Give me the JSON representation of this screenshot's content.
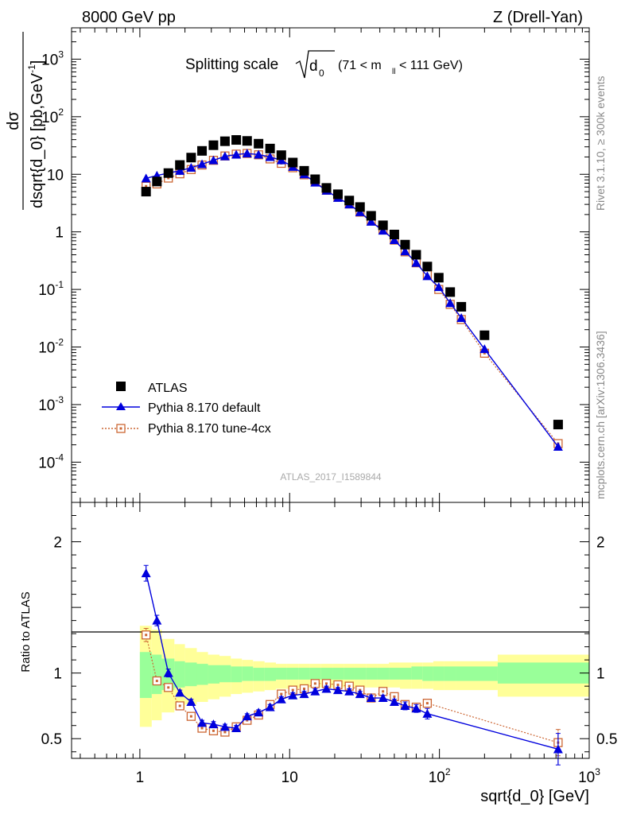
{
  "header": {
    "left": "8000 GeV pp",
    "right": "Z (Drell-Yan)"
  },
  "chart_data": [
    {
      "type": "scatter",
      "title": "Splitting scale",
      "title_sqrt": "d",
      "title_sqrt_sub": "0",
      "title_cut": "(71 < m",
      "title_cut_sub": "ll",
      "title_cut_end": " < 111 GeV)",
      "ylabel_num": "dσ",
      "ylabel_den": "dsqrt{d_0} [pb,GeV",
      "ylabel_den_sup": "-1",
      "ylabel_den_end": "]",
      "yscale": "log",
      "xscale": "log",
      "xlim": [
        0.35,
        1000
      ],
      "ylim": [
        2e-05,
        3500
      ],
      "ytick_labels": [
        {
          "base": "10",
          "exp": "-4"
        },
        {
          "base": "10",
          "exp": "-3"
        },
        {
          "base": "10",
          "exp": "-2"
        },
        {
          "base": "10",
          "exp": "-1"
        },
        {
          "base": "1",
          "exp": ""
        },
        {
          "base": "10",
          "exp": ""
        },
        {
          "base": "10",
          "exp": "2"
        },
        {
          "base": "10",
          "exp": "3"
        }
      ],
      "legend": [
        "ATLAS",
        "Pythia 8.170 default",
        "Pythia 8.170 tune-4cx"
      ],
      "legend_position": "lower-left",
      "watermark": "ATLAS_2017_I1589844",
      "x": [
        1.1,
        1.3,
        1.55,
        1.85,
        2.2,
        2.6,
        3.1,
        3.7,
        4.4,
        5.2,
        6.2,
        7.4,
        8.8,
        10.5,
        12.5,
        14.8,
        17.6,
        21,
        25,
        29.5,
        35,
        42,
        50,
        59,
        70,
        83,
        99,
        118,
        140,
        200,
        620
      ],
      "series": [
        {
          "name": "ATLAS",
          "color": "#000000",
          "values": [
            5.0,
            7.5,
            10.5,
            14.5,
            19.5,
            25.5,
            32,
            37.5,
            39.5,
            38,
            34,
            28,
            21.5,
            16,
            11.5,
            8.2,
            5.8,
            4.5,
            3.5,
            2.7,
            1.9,
            1.3,
            0.9,
            0.6,
            0.4,
            0.25,
            0.16,
            0.09,
            0.05,
            0.016,
            0.00045
          ]
        },
        {
          "name": "Pythia 8.170 default",
          "color": "#0000dd",
          "values": [
            8.5,
            9.5,
            10.5,
            11.5,
            13.0,
            15.0,
            17.5,
            20.5,
            22.0,
            23.0,
            22.0,
            20.0,
            17.5,
            13.5,
            10.0,
            7.2,
            5.2,
            3.9,
            3.0,
            2.2,
            1.5,
            1.05,
            0.72,
            0.46,
            0.29,
            0.17,
            0.11,
            0.058,
            0.032,
            0.0092,
            0.000185
          ]
        },
        {
          "name": "Pythia 8.170 tune-4cx",
          "color": "#cc6633",
          "values": [
            6.2,
            6.8,
            8.6,
            10.2,
            12.1,
            14.5,
            17.5,
            20.8,
            22.4,
            23.0,
            21.8,
            18.5,
            15.5,
            13.0,
            9.8,
            7.5,
            5.3,
            4.0,
            3.05,
            2.2,
            1.55,
            1.1,
            0.72,
            0.45,
            0.29,
            0.18,
            0.1,
            0.055,
            0.03,
            0.0078,
            0.00021
          ]
        }
      ]
    },
    {
      "type": "scatter",
      "ylabel": "Ratio to ATLAS",
      "xlabel": "sqrt{d_0} [GeV]",
      "yscale": "linear",
      "xscale": "log",
      "xlim": [
        0.35,
        1000
      ],
      "ylim": [
        0.35,
        2.3
      ],
      "ytick_labels": [
        "0.5",
        "1",
        "2"
      ],
      "xtick_labels": [
        {
          "base": "1",
          "exp": ""
        },
        {
          "base": "10",
          "exp": ""
        },
        {
          "base": "10",
          "exp": "2"
        },
        {
          "base": "10",
          "exp": "3"
        }
      ],
      "reference_line": 1,
      "bands": [
        {
          "name": "outer",
          "color": "#ffff99"
        },
        {
          "name": "inner",
          "color": "#99ff99"
        }
      ],
      "band_edges": [
        1.0,
        1.2,
        1.4,
        1.7,
        2.0,
        2.4,
        2.85,
        3.4,
        4.05,
        4.8,
        5.7,
        6.8,
        8.1,
        9.6,
        11.5,
        13.6,
        16.2,
        19.3,
        23,
        27,
        32.3,
        38.5,
        46,
        54.5,
        65,
        77,
        91,
        108,
        129,
        245,
        1000
      ],
      "band_outer": [
        [
          0.59,
          1.36
        ],
        [
          0.64,
          1.33
        ],
        [
          0.7,
          1.26
        ],
        [
          0.73,
          1.22
        ],
        [
          0.76,
          1.19
        ],
        [
          0.78,
          1.16
        ],
        [
          0.8,
          1.14
        ],
        [
          0.82,
          1.13
        ],
        [
          0.84,
          1.11
        ],
        [
          0.85,
          1.1
        ],
        [
          0.86,
          1.09
        ],
        [
          0.87,
          1.08
        ],
        [
          0.88,
          1.07
        ],
        [
          0.88,
          1.07
        ],
        [
          0.89,
          1.07
        ],
        [
          0.89,
          1.07
        ],
        [
          0.89,
          1.07
        ],
        [
          0.89,
          1.07
        ],
        [
          0.89,
          1.07
        ],
        [
          0.89,
          1.07
        ],
        [
          0.89,
          1.07
        ],
        [
          0.89,
          1.07
        ],
        [
          0.89,
          1.08
        ],
        [
          0.88,
          1.08
        ],
        [
          0.88,
          1.08
        ],
        [
          0.88,
          1.08
        ],
        [
          0.87,
          1.09
        ],
        [
          0.87,
          1.09
        ],
        [
          0.87,
          1.09
        ],
        [
          0.82,
          1.14
        ]
      ],
      "band_inner": [
        [
          0.81,
          1.16
        ],
        [
          0.84,
          1.14
        ],
        [
          0.87,
          1.11
        ],
        [
          0.89,
          1.09
        ],
        [
          0.9,
          1.08
        ],
        [
          0.91,
          1.07
        ],
        [
          0.92,
          1.06
        ],
        [
          0.93,
          1.06
        ],
        [
          0.93,
          1.05
        ],
        [
          0.94,
          1.05
        ],
        [
          0.94,
          1.04
        ],
        [
          0.94,
          1.04
        ],
        [
          0.95,
          1.04
        ],
        [
          0.95,
          1.04
        ],
        [
          0.95,
          1.04
        ],
        [
          0.95,
          1.04
        ],
        [
          0.95,
          1.04
        ],
        [
          0.95,
          1.04
        ],
        [
          0.95,
          1.04
        ],
        [
          0.95,
          1.04
        ],
        [
          0.95,
          1.04
        ],
        [
          0.95,
          1.04
        ],
        [
          0.95,
          1.04
        ],
        [
          0.95,
          1.04
        ],
        [
          0.95,
          1.05
        ],
        [
          0.94,
          1.05
        ],
        [
          0.94,
          1.05
        ],
        [
          0.94,
          1.05
        ],
        [
          0.94,
          1.05
        ],
        [
          0.92,
          1.08
        ]
      ],
      "x": [
        1.1,
        1.3,
        1.55,
        1.85,
        2.2,
        2.6,
        3.1,
        3.7,
        4.4,
        5.2,
        6.2,
        7.4,
        8.8,
        10.5,
        12.5,
        14.8,
        17.6,
        21,
        25,
        29.5,
        35,
        42,
        50,
        59,
        70,
        83,
        620
      ],
      "series": [
        {
          "name": "Pythia 8.170 default",
          "color": "#0000dd",
          "values": [
            1.76,
            1.4,
            1.0,
            0.85,
            0.78,
            0.62,
            0.61,
            0.59,
            0.58,
            0.67,
            0.7,
            0.74,
            0.8,
            0.83,
            0.84,
            0.86,
            0.88,
            0.87,
            0.86,
            0.84,
            0.81,
            0.81,
            0.78,
            0.75,
            0.73,
            0.69,
            0.42
          ],
          "errors": [
            0.06,
            0.04,
            0.03,
            0.02,
            0.02,
            0.02,
            0.02,
            0.02,
            0.02,
            0.02,
            0.02,
            0.02,
            0.02,
            0.02,
            0.02,
            0.02,
            0.02,
            0.02,
            0.02,
            0.02,
            0.02,
            0.02,
            0.02,
            0.03,
            0.03,
            0.04,
            0.12
          ]
        },
        {
          "name": "Pythia 8.170 tune-4cx",
          "color": "#cc6633",
          "values": [
            1.29,
            0.94,
            0.89,
            0.75,
            0.67,
            0.58,
            0.56,
            0.55,
            0.59,
            0.64,
            0.68,
            0.76,
            0.84,
            0.87,
            0.88,
            0.92,
            0.92,
            0.91,
            0.9,
            0.87,
            0.81,
            0.86,
            0.82,
            0.76,
            0.74,
            0.77,
            0.47
          ],
          "errors": [
            0.05,
            0.03,
            0.02,
            0.02,
            0.02,
            0.02,
            0.02,
            0.02,
            0.02,
            0.02,
            0.02,
            0.02,
            0.02,
            0.02,
            0.02,
            0.02,
            0.02,
            0.02,
            0.02,
            0.02,
            0.02,
            0.02,
            0.02,
            0.02,
            0.02,
            0.02,
            0.1
          ]
        }
      ]
    }
  ],
  "side_labels": {
    "rivet": "Rivet 3.1.10, ≥ 300k events",
    "mcplots": "mcplots.cern.ch [arXiv:1306.3436]"
  }
}
